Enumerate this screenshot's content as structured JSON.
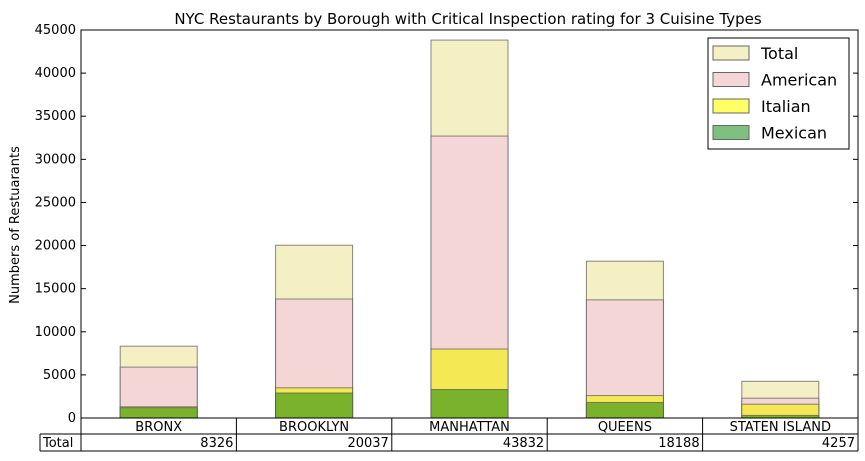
{
  "chart_data": {
    "type": "bar",
    "title": "NYC Restaurants by Borough with Critical Inspection rating for 3 Cuisine Types",
    "ylabel": "Numbers of Restuarants",
    "ylim": [
      0,
      45000
    ],
    "yticks": [
      0,
      5000,
      10000,
      15000,
      20000,
      25000,
      30000,
      35000,
      40000,
      45000
    ],
    "categories": [
      "BRONX",
      "BROOKLYN",
      "MANHATTAN",
      "QUEENS",
      "STATEN ISLAND"
    ],
    "series": [
      {
        "name": "Total",
        "values": [
          8326,
          20037,
          43832,
          18188,
          4257
        ],
        "color": "#f5f0c4"
      },
      {
        "name": "American",
        "values": [
          5900,
          13800,
          32700,
          13700,
          2300
        ],
        "color": "#f4d6d6"
      },
      {
        "name": "Italian",
        "values": [
          1300,
          3500,
          8000,
          2600,
          1600
        ],
        "color": "#f4e855"
      },
      {
        "name": "Mexican",
        "values": [
          1200,
          2900,
          3300,
          1800,
          300
        ],
        "color": "#7ab22c"
      }
    ],
    "legend": {
      "position": "top-right",
      "entries": [
        {
          "label": "Total",
          "color": "#f5f0c4"
        },
        {
          "label": "American",
          "color": "#f4d6d6"
        },
        {
          "label": "Italian",
          "color": "#ffff66"
        },
        {
          "label": "Mexican",
          "color": "#7fbf7f"
        }
      ]
    },
    "table": {
      "row_label": "Total",
      "values": [
        "8326",
        "20037",
        "43832",
        "18188",
        "4257"
      ]
    },
    "grid": false
  }
}
